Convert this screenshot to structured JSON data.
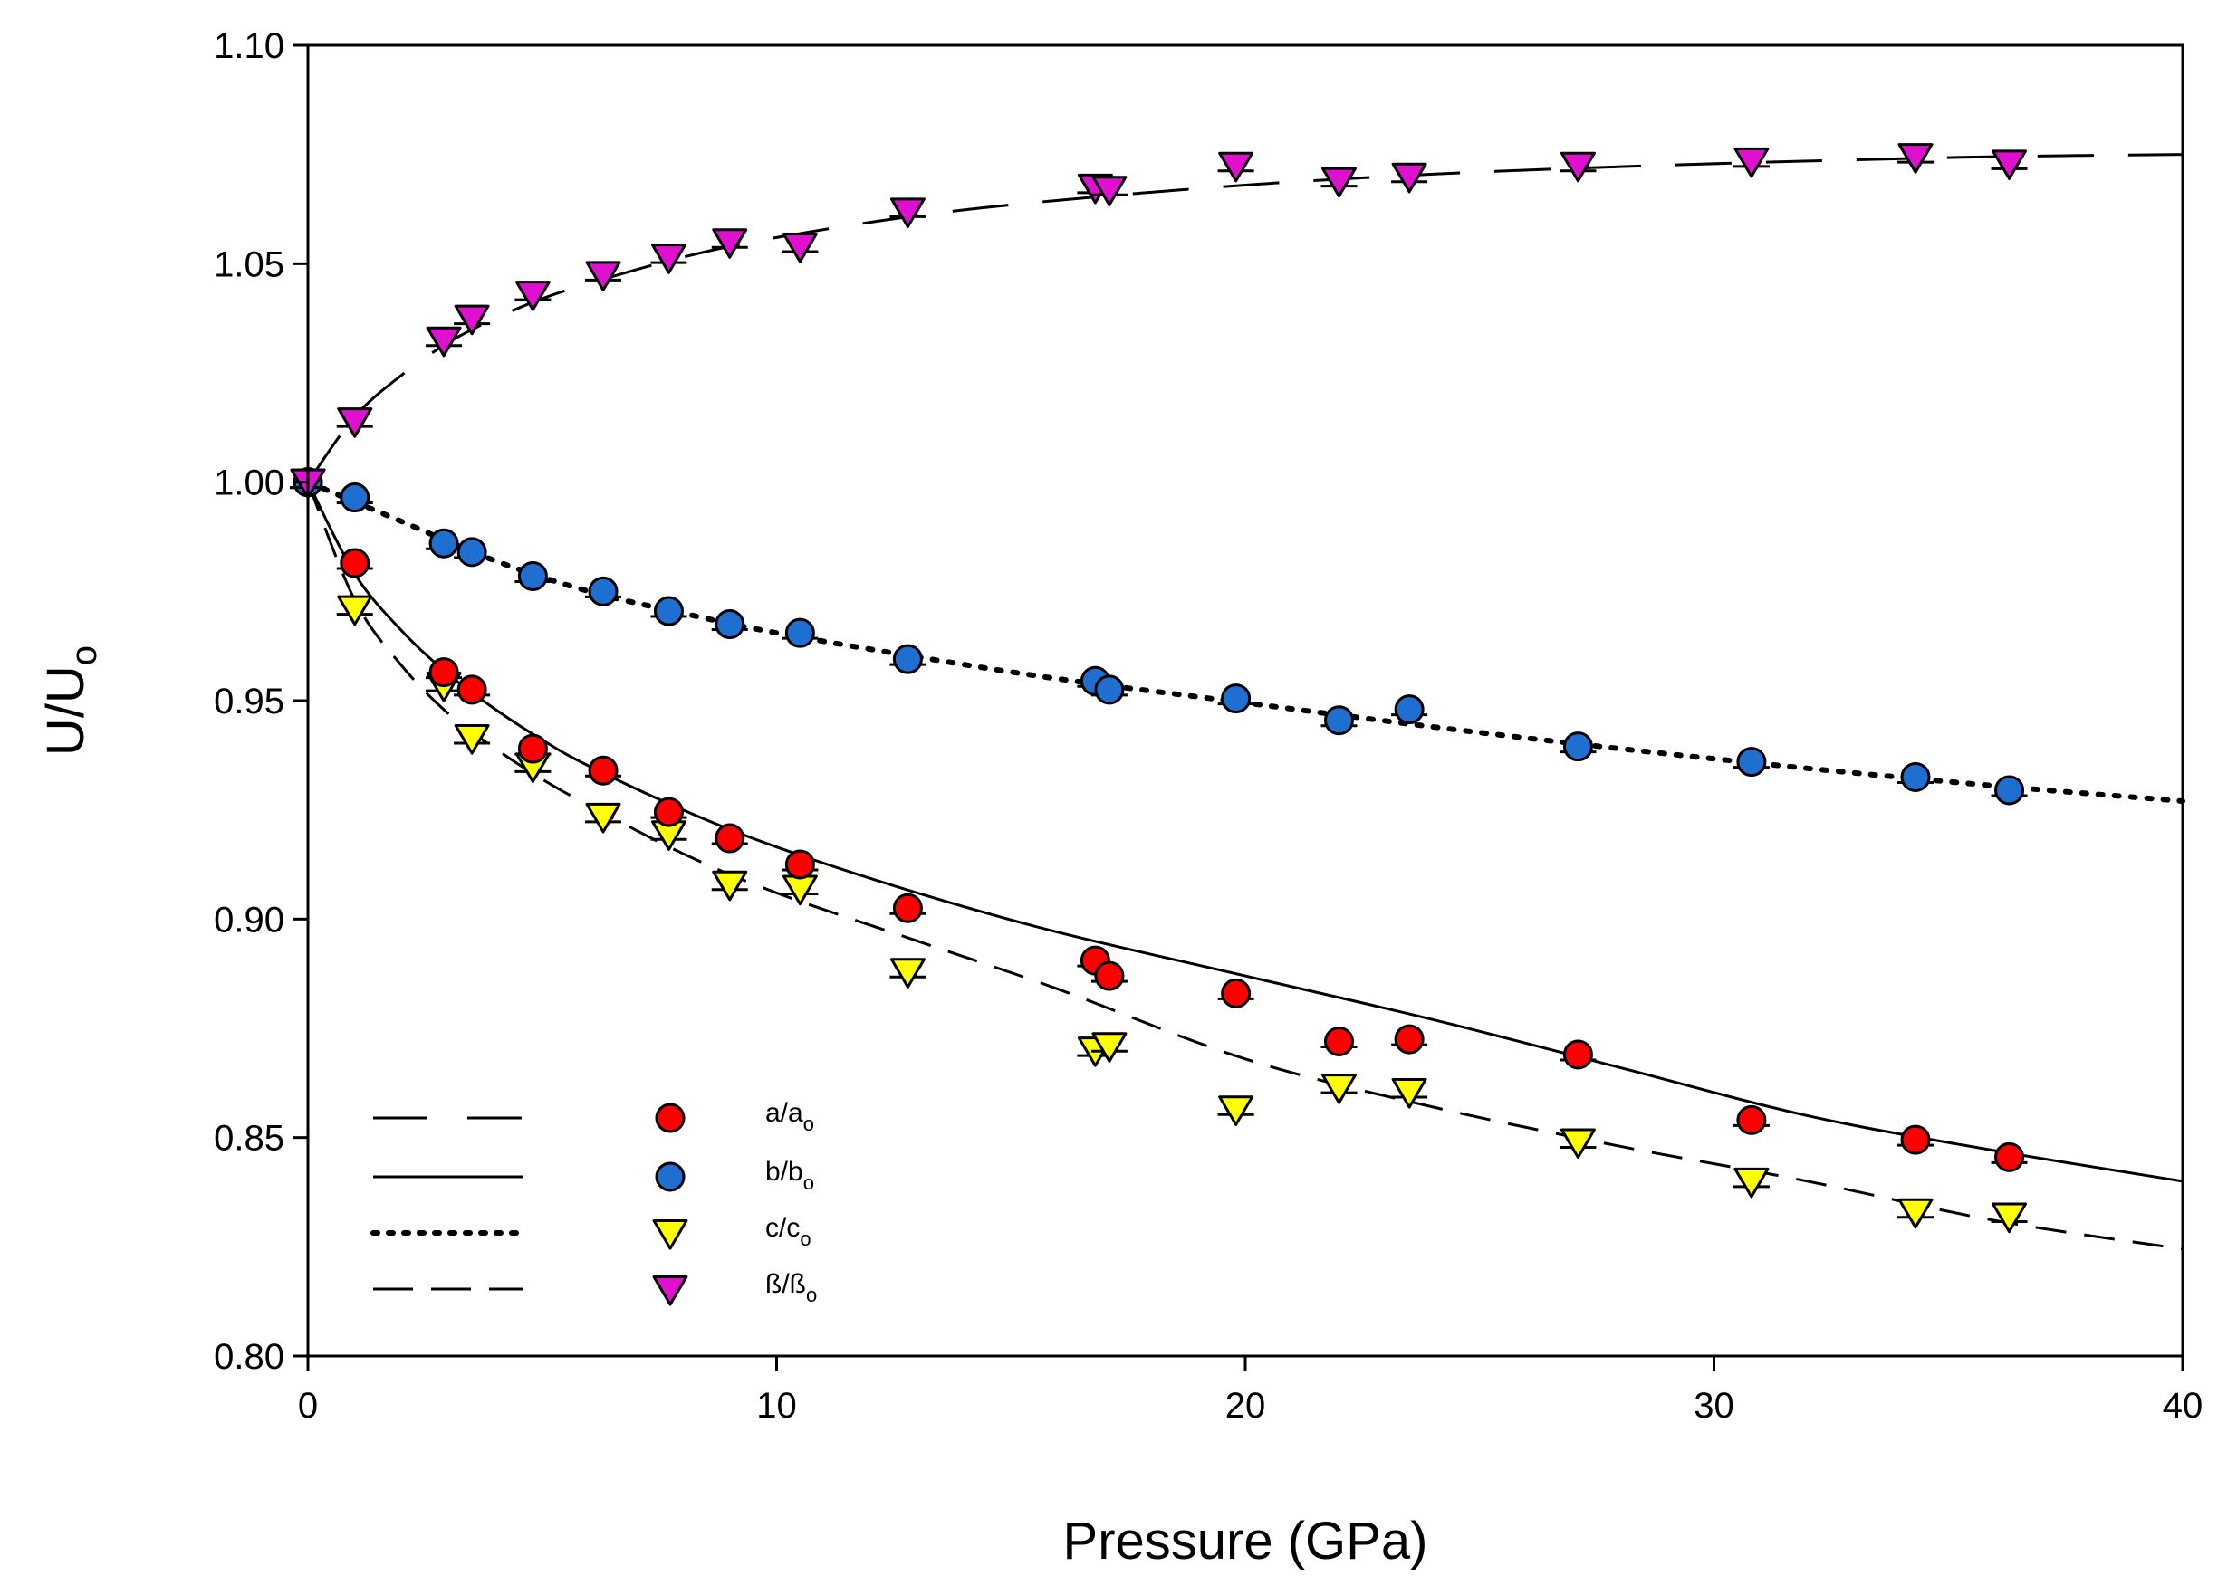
{
  "chart_data": {
    "type": "scatter",
    "title": "",
    "xlabel": "Pressure (GPa)",
    "ylabel": {
      "main": "U/U",
      "sub": "o"
    },
    "xlim": [
      0,
      40
    ],
    "ylim": [
      0.8,
      1.1
    ],
    "x_ticks": [
      0,
      10,
      20,
      30,
      40
    ],
    "x_tick_labels": [
      "0",
      "10",
      "20",
      "30",
      "40"
    ],
    "y_ticks": [
      0.8,
      0.85,
      0.9,
      0.95,
      1.0,
      1.05,
      1.1
    ],
    "y_tick_labels": [
      "0.80",
      "0.85",
      "0.90",
      "0.95",
      "1.00",
      "1.05",
      "1.10"
    ],
    "grid": false,
    "legend_position": "bottom-left",
    "series": [
      {
        "name": "a/a_o",
        "label_main": "a/a",
        "label_sub": "o",
        "marker": "circle",
        "color": "#ff0000",
        "x": [
          0,
          1.0,
          2.9,
          3.5,
          4.8,
          6.3,
          7.7,
          9.0,
          10.5,
          12.8,
          16.8,
          17.1,
          19.8,
          22.0,
          23.5,
          27.1,
          30.8,
          34.3,
          36.3
        ],
        "values": [
          1.0,
          0.9815,
          0.9565,
          0.9525,
          0.939,
          0.934,
          0.9245,
          0.9185,
          0.9125,
          0.9025,
          0.8905,
          0.887,
          0.883,
          0.872,
          0.8725,
          0.869,
          0.854,
          0.8495,
          0.8455
        ]
      },
      {
        "name": "b/b_o",
        "label_main": "b/b",
        "label_sub": "o",
        "marker": "circle",
        "color": "#1f6fd1",
        "x": [
          0,
          1.0,
          2.9,
          3.5,
          4.8,
          6.3,
          7.7,
          9.0,
          10.5,
          12.8,
          16.8,
          17.1,
          19.8,
          22.0,
          23.5,
          27.1,
          30.8,
          34.3,
          36.3
        ],
        "values": [
          1.0,
          0.9965,
          0.986,
          0.984,
          0.9785,
          0.975,
          0.9705,
          0.9675,
          0.9655,
          0.9595,
          0.9545,
          0.9525,
          0.9505,
          0.9455,
          0.948,
          0.9395,
          0.936,
          0.9325,
          0.9295
        ]
      },
      {
        "name": "c/c_o",
        "label_main": "c/c",
        "label_sub": "o",
        "marker": "triangle-down",
        "color": "#ffff00",
        "x": [
          0,
          1.0,
          2.9,
          3.5,
          4.8,
          6.3,
          7.7,
          9.0,
          10.5,
          12.8,
          16.8,
          17.1,
          19.8,
          22.0,
          23.5,
          27.1,
          30.8,
          34.3,
          36.3
        ],
        "values": [
          1.0,
          0.971,
          0.9535,
          0.9415,
          0.935,
          0.9235,
          0.9195,
          0.908,
          0.907,
          0.888,
          0.87,
          0.871,
          0.8565,
          0.8615,
          0.8605,
          0.849,
          0.84,
          0.833,
          0.832
        ]
      },
      {
        "name": "ß/ß_o",
        "label_main": "ß/ß",
        "label_sub": "o",
        "marker": "triangle-down",
        "color": "#e010d0",
        "x": [
          0,
          1.0,
          2.9,
          3.5,
          4.8,
          6.3,
          7.7,
          9.0,
          10.5,
          12.8,
          16.8,
          17.1,
          19.8,
          22.0,
          23.5,
          27.1,
          30.8,
          34.3,
          36.3
        ],
        "values": [
          1.0,
          1.014,
          1.0325,
          1.0375,
          1.043,
          1.0475,
          1.0515,
          1.055,
          1.054,
          1.062,
          1.0675,
          1.067,
          1.0725,
          1.069,
          1.07,
          1.0725,
          1.0735,
          1.0745,
          1.073
        ]
      }
    ],
    "fit_curves": [
      {
        "name": "fit-beta",
        "style": "long-dash",
        "x": [
          0,
          1,
          2,
          3,
          4,
          5,
          6,
          8,
          10,
          13,
          16,
          20,
          24,
          28,
          32,
          36,
          40
        ],
        "values": [
          1.0,
          1.015,
          1.0245,
          1.032,
          1.0375,
          1.042,
          1.0455,
          1.0515,
          1.056,
          1.061,
          1.0645,
          1.068,
          1.0705,
          1.0722,
          1.0735,
          1.0745,
          1.075
        ]
      },
      {
        "name": "fit-a",
        "style": "solid",
        "x": [
          0,
          1,
          2,
          3,
          4,
          5,
          6,
          8,
          10,
          13,
          16,
          20,
          24,
          28,
          32,
          36,
          40
        ],
        "values": [
          1.0,
          0.979,
          0.966,
          0.956,
          0.948,
          0.941,
          0.935,
          0.925,
          0.9165,
          0.906,
          0.897,
          0.887,
          0.877,
          0.866,
          0.855,
          0.847,
          0.84
        ]
      },
      {
        "name": "fit-b",
        "style": "dotted",
        "x": [
          0,
          2,
          4,
          6,
          8,
          10,
          13,
          16,
          20,
          24,
          28,
          32,
          36,
          40
        ],
        "values": [
          1.0,
          0.991,
          0.982,
          0.975,
          0.97,
          0.9655,
          0.96,
          0.955,
          0.9495,
          0.944,
          0.939,
          0.9345,
          0.9305,
          0.927
        ]
      },
      {
        "name": "fit-c",
        "style": "dashed",
        "x": [
          0,
          1,
          2,
          3,
          4,
          5,
          6,
          8,
          10,
          13,
          16,
          20,
          24,
          28,
          32,
          36,
          40
        ],
        "values": [
          1.0,
          0.973,
          0.958,
          0.947,
          0.939,
          0.932,
          0.926,
          0.915,
          0.906,
          0.895,
          0.884,
          0.868,
          0.857,
          0.848,
          0.84,
          0.831,
          0.8245
        ]
      }
    ],
    "legend_lines": [
      "long-dash",
      "solid",
      "dotted",
      "dashed"
    ]
  }
}
